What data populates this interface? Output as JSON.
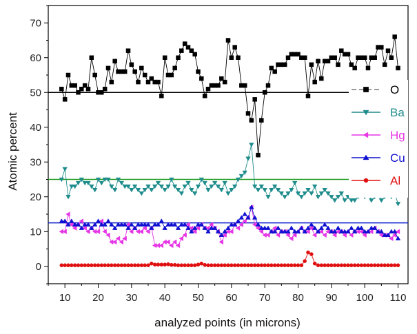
{
  "chart_data": {
    "type": "line",
    "title": "",
    "xlabel": "analyzed points (in microns)",
    "ylabel": "Atomic percent",
    "xlim": [
      5,
      113
    ],
    "ylim": [
      -5,
      75
    ],
    "xticks": [
      10,
      20,
      30,
      40,
      50,
      60,
      70,
      80,
      90,
      100,
      110
    ],
    "yticks": [
      0,
      10,
      20,
      30,
      40,
      50,
      60,
      70
    ],
    "legend_position": "right",
    "grid": false,
    "reference_lines": [
      {
        "y": 50,
        "color": "#000000"
      },
      {
        "y": 25,
        "color": "#1a9a1a"
      },
      {
        "y": 12.5,
        "color": "#0a1acc"
      }
    ],
    "series": [
      {
        "name": "O",
        "color": "#000000",
        "marker": "square",
        "dashed_legend": true,
        "x": [
          9,
          10,
          11,
          12,
          13,
          14,
          15,
          16,
          17,
          18,
          19,
          20,
          21,
          22,
          23,
          24,
          25,
          26,
          27,
          28,
          29,
          30,
          31,
          32,
          33,
          34,
          35,
          36,
          37,
          38,
          39,
          40,
          41,
          42,
          43,
          44,
          45,
          46,
          47,
          48,
          49,
          50,
          51,
          52,
          53,
          54,
          55,
          56,
          57,
          58,
          59,
          60,
          61,
          62,
          63,
          64,
          65,
          66,
          67,
          68,
          69,
          70,
          71,
          72,
          73,
          74,
          75,
          76,
          77,
          78,
          79,
          80,
          81,
          82,
          83,
          84,
          85,
          86,
          87,
          88,
          89,
          90,
          91,
          92,
          93,
          94,
          95,
          96,
          97,
          98,
          99,
          100,
          101,
          102,
          103,
          104,
          105,
          106,
          107,
          108,
          109,
          110
        ],
        "values": [
          51,
          48,
          55,
          52,
          52,
          50,
          51,
          52,
          51,
          60,
          55,
          50,
          50,
          51,
          57,
          53,
          59,
          56,
          56,
          56,
          62,
          58,
          56,
          53,
          57,
          55,
          53,
          54,
          53,
          53,
          49,
          60,
          55,
          55,
          57,
          60,
          62,
          64,
          63,
          62,
          61,
          56,
          54,
          49,
          51,
          52,
          52,
          52,
          54,
          53,
          65,
          60,
          63,
          60,
          52,
          52,
          44,
          42,
          48,
          32,
          42,
          50,
          52,
          57,
          56,
          58,
          58,
          58,
          60,
          61,
          61,
          61,
          60,
          60,
          49,
          58,
          53,
          59,
          54,
          59,
          59,
          60,
          60,
          58,
          62,
          61,
          61,
          58,
          57,
          60,
          60,
          60,
          57,
          60,
          60,
          63,
          63,
          58,
          62,
          60,
          66,
          57
        ],
        "values_note": ""
      },
      {
        "name": "Ba",
        "color": "#1f8c8c",
        "marker": "triangle-down",
        "x": [
          9,
          10,
          11,
          12,
          13,
          14,
          15,
          16,
          17,
          18,
          19,
          20,
          21,
          22,
          23,
          24,
          25,
          26,
          27,
          28,
          29,
          30,
          31,
          32,
          33,
          34,
          35,
          36,
          37,
          38,
          39,
          40,
          41,
          42,
          43,
          44,
          45,
          46,
          47,
          48,
          49,
          50,
          51,
          52,
          53,
          54,
          55,
          56,
          57,
          58,
          59,
          60,
          61,
          62,
          63,
          64,
          65,
          66,
          67,
          68,
          69,
          70,
          71,
          72,
          73,
          74,
          75,
          76,
          77,
          78,
          79,
          80,
          81,
          82,
          83,
          84,
          85,
          86,
          87,
          88,
          89,
          90,
          91,
          92,
          93,
          94,
          95,
          96,
          97,
          98,
          99,
          100,
          101,
          102,
          103,
          104,
          105,
          106,
          107,
          108,
          109,
          110
        ],
        "values": [
          25,
          28,
          20,
          23,
          23,
          24,
          25,
          24,
          24,
          23,
          22,
          25,
          24,
          25,
          25,
          23,
          22,
          25,
          24,
          23,
          23,
          22,
          23,
          22,
          21,
          22,
          23,
          22,
          23,
          24,
          23,
          22,
          23,
          25,
          23,
          22,
          21,
          23,
          24,
          22,
          21,
          23,
          25,
          24,
          22,
          23,
          24,
          23,
          22,
          24,
          21,
          22,
          23,
          25,
          26,
          27,
          31,
          35,
          23,
          22,
          23,
          22,
          20,
          22,
          23,
          22,
          21,
          20,
          21,
          22,
          24,
          21,
          20,
          21,
          22,
          21,
          23,
          20,
          21,
          22,
          21,
          20,
          19,
          20,
          21,
          19,
          20,
          19,
          19,
          20,
          21,
          20,
          21,
          19,
          20,
          21,
          19,
          20,
          21,
          20,
          21,
          18
        ],
        "values_note": ""
      },
      {
        "name": "Hg",
        "color": "#e535e5",
        "marker": "triangle-left",
        "x": [
          9,
          10,
          11,
          12,
          13,
          14,
          15,
          16,
          17,
          18,
          19,
          20,
          21,
          22,
          23,
          24,
          25,
          26,
          27,
          28,
          29,
          30,
          31,
          32,
          33,
          34,
          35,
          36,
          37,
          38,
          39,
          40,
          41,
          42,
          43,
          44,
          45,
          46,
          47,
          48,
          49,
          50,
          51,
          52,
          53,
          54,
          55,
          56,
          57,
          58,
          59,
          60,
          61,
          62,
          63,
          64,
          65,
          66,
          67,
          68,
          69,
          70,
          71,
          72,
          73,
          74,
          75,
          76,
          77,
          78,
          79,
          80,
          81,
          82,
          83,
          84,
          85,
          86,
          87,
          88,
          89,
          90,
          91,
          92,
          93,
          94,
          95,
          96,
          97,
          98,
          99,
          100,
          101,
          102,
          103,
          104,
          105,
          106,
          107,
          108,
          109,
          110
        ],
        "values": [
          10,
          10,
          15,
          12,
          11,
          12,
          13,
          11,
          10,
          11,
          10,
          10,
          13,
          10,
          9,
          7,
          7,
          8,
          7,
          8,
          12,
          10,
          11,
          10,
          10,
          11,
          10,
          11,
          6,
          6,
          6,
          7,
          7,
          6,
          7,
          6,
          8,
          9,
          12,
          11,
          10,
          11,
          12,
          11,
          11,
          12,
          11,
          10,
          7,
          9,
          10,
          10,
          12,
          11,
          12,
          13,
          14,
          17,
          12,
          11,
          10,
          9,
          9,
          10,
          11,
          9,
          10,
          10,
          9,
          8,
          9,
          10,
          11,
          10,
          10,
          11,
          9,
          10,
          10,
          9,
          10,
          10,
          9,
          10,
          10,
          9,
          10,
          9,
          10,
          10,
          10,
          9,
          10,
          10,
          11,
          10,
          9,
          9,
          9,
          8,
          9,
          10
        ],
        "values_note": ""
      },
      {
        "name": "Cu",
        "color": "#1010d0",
        "marker": "triangle-up",
        "x": [
          9,
          10,
          11,
          12,
          13,
          14,
          15,
          16,
          17,
          18,
          19,
          20,
          21,
          22,
          23,
          24,
          25,
          26,
          27,
          28,
          29,
          30,
          31,
          32,
          33,
          34,
          35,
          36,
          37,
          38,
          39,
          40,
          41,
          42,
          43,
          44,
          45,
          46,
          47,
          48,
          49,
          50,
          51,
          52,
          53,
          54,
          55,
          56,
          57,
          58,
          59,
          60,
          61,
          62,
          63,
          64,
          65,
          66,
          67,
          68,
          69,
          70,
          71,
          72,
          73,
          74,
          75,
          76,
          77,
          78,
          79,
          80,
          81,
          82,
          83,
          84,
          85,
          86,
          87,
          88,
          89,
          90,
          91,
          92,
          93,
          94,
          95,
          96,
          97,
          98,
          99,
          100,
          101,
          102,
          103,
          104,
          105,
          106,
          107,
          108,
          109,
          110
        ],
        "values": [
          13,
          13,
          12,
          13,
          12,
          12,
          11,
          12,
          12,
          11,
          12,
          13,
          12,
          12,
          13,
          12,
          11,
          12,
          12,
          12,
          11,
          12,
          11,
          12,
          12,
          12,
          12,
          11,
          12,
          12,
          13,
          11,
          12,
          12,
          12,
          11,
          12,
          12,
          11,
          10,
          11,
          12,
          12,
          11,
          10,
          11,
          11,
          10,
          9,
          10,
          11,
          12,
          12,
          13,
          14,
          15,
          14,
          17,
          14,
          12,
          11,
          11,
          11,
          10,
          10,
          11,
          10,
          10,
          10,
          11,
          10,
          10,
          11,
          10,
          11,
          12,
          11,
          10,
          11,
          12,
          11,
          10,
          10,
          11,
          10,
          10,
          10,
          11,
          10,
          11,
          11,
          10,
          10,
          11,
          11,
          10,
          10,
          9,
          9,
          10,
          10,
          8
        ],
        "values_note": ""
      },
      {
        "name": "Al",
        "color": "#e01010",
        "marker": "circle",
        "x": [
          9,
          10,
          11,
          12,
          13,
          14,
          15,
          16,
          17,
          18,
          19,
          20,
          21,
          22,
          23,
          24,
          25,
          26,
          27,
          28,
          29,
          30,
          31,
          32,
          33,
          34,
          35,
          36,
          37,
          38,
          39,
          40,
          41,
          42,
          43,
          44,
          45,
          46,
          47,
          48,
          49,
          50,
          51,
          52,
          53,
          54,
          55,
          56,
          57,
          58,
          59,
          60,
          61,
          62,
          63,
          64,
          65,
          66,
          67,
          68,
          69,
          70,
          71,
          72,
          73,
          74,
          75,
          76,
          77,
          78,
          79,
          80,
          81,
          82,
          83,
          84,
          85,
          86,
          87,
          88,
          89,
          90,
          91,
          92,
          93,
          94,
          95,
          96,
          97,
          98,
          99,
          100,
          101,
          102,
          103,
          104,
          105,
          106,
          107,
          108,
          109,
          110
        ],
        "values": [
          0.3,
          0.3,
          0.3,
          0.3,
          0.3,
          0.3,
          0.3,
          0.3,
          0.3,
          0.3,
          0.3,
          0.3,
          0.3,
          0.3,
          0.3,
          0.3,
          0.3,
          0.3,
          0.3,
          0.3,
          0.3,
          0.3,
          0.3,
          0.3,
          0.3,
          0.3,
          0.3,
          0.8,
          0.5,
          0.5,
          0.5,
          0.5,
          0.6,
          0.4,
          0.4,
          0.3,
          0.3,
          0.3,
          0.3,
          0.3,
          0.3,
          0.5,
          0.8,
          0.4,
          0.3,
          0.3,
          0.3,
          0.3,
          0.3,
          0.3,
          0.3,
          0.3,
          0.3,
          0.3,
          0.3,
          0.3,
          0.3,
          0.3,
          0.3,
          0.3,
          0.3,
          0.3,
          0.3,
          0.3,
          0.3,
          0.3,
          0.3,
          0.3,
          0.3,
          0.3,
          0.3,
          0.3,
          0.3,
          1.5,
          4.0,
          3.5,
          0.8,
          0.3,
          0.3,
          0.3,
          0.3,
          0.3,
          0.3,
          0.3,
          0.3,
          0.3,
          0.3,
          0.3,
          0.3,
          0.3,
          0.3,
          0.3,
          0.3,
          0.3,
          0.3,
          0.3,
          0.3,
          0.3,
          0.3,
          0.3,
          0.3,
          0.3
        ],
        "values_note": ""
      }
    ]
  }
}
